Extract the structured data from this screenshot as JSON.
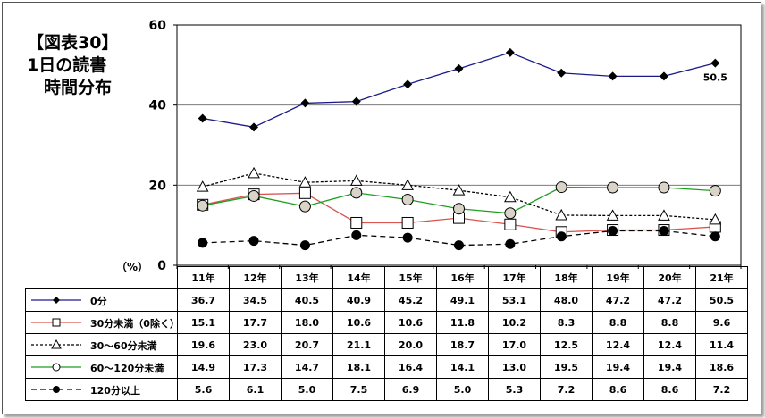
{
  "title_lines": [
    "【図表30】",
    "1日の読書",
    "　時間分布"
  ],
  "percent_label": "（%）",
  "chart_data": {
    "type": "line",
    "categories": [
      "11年",
      "12年",
      "13年",
      "14年",
      "15年",
      "16年",
      "17年",
      "18年",
      "19年",
      "20年",
      "21年"
    ],
    "ylim": [
      0,
      60
    ],
    "yticks": [
      "0",
      "20",
      "40",
      "60"
    ],
    "grid": true,
    "annotations": [
      {
        "series": 0,
        "index": 10,
        "text": "50.5"
      }
    ],
    "series": [
      {
        "name": "0分",
        "marker": "diamond",
        "line_color": "#1a1a8a",
        "dash": "solid",
        "values": [
          36.7,
          34.5,
          40.5,
          40.9,
          45.2,
          49.1,
          53.1,
          48.0,
          47.2,
          47.2,
          50.5
        ],
        "labels": [
          "36.7",
          "34.5",
          "40.5",
          "40.9",
          "45.2",
          "49.1",
          "53.1",
          "48.0",
          "47.2",
          "47.2",
          "50.5"
        ]
      },
      {
        "name": "30分未満（0除く）",
        "marker": "square",
        "line_color": "#d9534f",
        "dash": "solid",
        "values": [
          15.1,
          17.7,
          18.0,
          10.6,
          10.6,
          11.8,
          10.2,
          8.3,
          8.8,
          8.8,
          9.6
        ],
        "labels": [
          "15.1",
          "17.7",
          "18.0",
          "10.6",
          "10.6",
          "11.8",
          "10.2",
          "8.3",
          "8.8",
          "8.8",
          "9.6"
        ]
      },
      {
        "name": "30～60分未満",
        "marker": "triangle",
        "line_color": "#000000",
        "dash": "dotted",
        "values": [
          19.6,
          23.0,
          20.7,
          21.1,
          20.0,
          18.7,
          17.0,
          12.5,
          12.4,
          12.4,
          11.4
        ],
        "labels": [
          "19.6",
          "23.0",
          "20.7",
          "21.1",
          "20.0",
          "18.7",
          "17.0",
          "12.5",
          "12.4",
          "12.4",
          "11.4"
        ]
      },
      {
        "name": "60～120分未満",
        "marker": "circle-open",
        "line_color": "#1e9e1e",
        "dash": "solid",
        "values": [
          14.9,
          17.3,
          14.7,
          18.1,
          16.4,
          14.1,
          13.0,
          19.5,
          19.4,
          19.4,
          18.6
        ],
        "labels": [
          "14.9",
          "17.3",
          "14.7",
          "18.1",
          "16.4",
          "14.1",
          "13.0",
          "19.5",
          "19.4",
          "19.4",
          "18.6"
        ]
      },
      {
        "name": "120分以上",
        "marker": "circle-filled",
        "line_color": "#000000",
        "dash": "dashed",
        "values": [
          5.6,
          6.1,
          5.0,
          7.5,
          6.9,
          5.0,
          5.3,
          7.2,
          8.6,
          8.6,
          7.2
        ],
        "labels": [
          "5.6",
          "6.1",
          "5.0",
          "7.5",
          "6.9",
          "5.0",
          "5.3",
          "7.2",
          "8.6",
          "8.6",
          "7.2"
        ]
      }
    ]
  }
}
